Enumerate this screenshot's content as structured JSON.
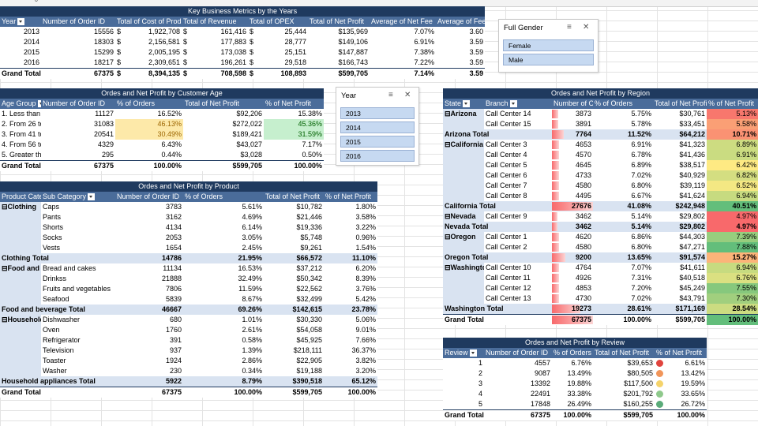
{
  "top_strip_marker": "0",
  "key_metrics": {
    "title": "Key Business Metrics by the Years",
    "headers": [
      "Year",
      "Number of Order ID",
      "Total of Cost of Products",
      "Total of Revenue",
      "Total of OPEX",
      "Total of Net Profit",
      "Average of Net Fee",
      "Average of Fee"
    ],
    "rows": [
      [
        "2013",
        "15556",
        "$",
        "1,922,708",
        "$",
        "161,416",
        "$",
        "25,444",
        "$135,969",
        "7.07%",
        "3.60"
      ],
      [
        "2014",
        "18303",
        "$",
        "2,156,581",
        "$",
        "177,883",
        "$",
        "28,777",
        "$149,106",
        "6.91%",
        "3.59"
      ],
      [
        "2015",
        "15299",
        "$",
        "2,005,195",
        "$",
        "173,038",
        "$",
        "25,151",
        "$147,887",
        "7.38%",
        "3.59"
      ],
      [
        "2016",
        "18217",
        "$",
        "2,309,651",
        "$",
        "196,261",
        "$",
        "29,518",
        "$166,743",
        "7.22%",
        "3.59"
      ]
    ],
    "total": [
      "Grand Total",
      "67375",
      "$",
      "8,394,135",
      "$",
      "708,598",
      "$",
      "108,893",
      "$599,705",
      "7.14%",
      "3.59"
    ]
  },
  "age": {
    "title": "Ordes and Net Profit by Customer Age",
    "headers": [
      "Age Group",
      "Number of Order ID",
      "% of Orders",
      "Total of Net Profit",
      "% of Net Profit"
    ],
    "rows": [
      [
        "1. Less than 26",
        "11127",
        "16.52%",
        "$92,206",
        "15.38%"
      ],
      [
        "2. From 26 to 40",
        "31083",
        "46.13%",
        "$272,022",
        "45.36%"
      ],
      [
        "3. From 41 to 55",
        "20541",
        "30.49%",
        "$189,421",
        "31.59%"
      ],
      [
        "4. From 56 to 70",
        "4329",
        "6.43%",
        "$43,027",
        "7.17%"
      ],
      [
        "5. Greater than 70",
        "295",
        "0.44%",
        "$3,028",
        "0.50%"
      ]
    ],
    "total": [
      "Grand Total",
      "67375",
      "100.00%",
      "$599,705",
      "100.00%"
    ]
  },
  "product": {
    "title": "Ordes and Net Profit by Product",
    "headers": [
      "Product Category",
      "Sub Category",
      "Number of Order ID",
      "% of Orders",
      "Total of Net Profit",
      "% of Net Profit"
    ],
    "groups": [
      {
        "name": "Clothing",
        "rows": [
          [
            "Caps",
            "3783",
            "5.61%",
            "$10,782",
            "1.80%"
          ],
          [
            "Pants",
            "3162",
            "4.69%",
            "$21,446",
            "3.58%"
          ],
          [
            "Shorts",
            "4134",
            "6.14%",
            "$19,336",
            "3.22%"
          ],
          [
            "Socks",
            "2053",
            "3.05%",
            "$5,748",
            "0.96%"
          ],
          [
            "Vests",
            "1654",
            "2.45%",
            "$9,261",
            "1.54%"
          ]
        ],
        "total": [
          "Clothing Total",
          "14786",
          "21.95%",
          "$66,572",
          "11.10%"
        ]
      },
      {
        "name": "Food and beverage",
        "rows": [
          [
            "Bread and cakes",
            "11134",
            "16.53%",
            "$37,212",
            "6.20%"
          ],
          [
            "Drinkss",
            "21888",
            "32.49%",
            "$50,342",
            "8.39%"
          ],
          [
            "Fruits and vegetables",
            "7806",
            "11.59%",
            "$22,562",
            "3.76%"
          ],
          [
            "Seafood",
            "5839",
            "8.67%",
            "$32,499",
            "5.42%"
          ]
        ],
        "total": [
          "Food and beverage Total",
          "46667",
          "69.26%",
          "$142,615",
          "23.78%"
        ]
      },
      {
        "name": "Household appliances",
        "rows": [
          [
            "Dishwasher",
            "680",
            "1.01%",
            "$30,330",
            "5.06%"
          ],
          [
            "Oven",
            "1760",
            "2.61%",
            "$54,058",
            "9.01%"
          ],
          [
            "Refrigerator",
            "391",
            "0.58%",
            "$45,925",
            "7.66%"
          ],
          [
            "Television",
            "937",
            "1.39%",
            "$218,111",
            "36.37%"
          ],
          [
            "Toaster",
            "1924",
            "2.86%",
            "$22,905",
            "3.82%"
          ],
          [
            "Washer",
            "230",
            "0.34%",
            "$19,188",
            "3.20%"
          ]
        ],
        "total": [
          "Household appliances Total",
          "5922",
          "8.79%",
          "$390,518",
          "65.12%"
        ]
      }
    ],
    "total": [
      "Grand Total",
      "67375",
      "100.00%",
      "$599,705",
      "100.00%"
    ]
  },
  "gender_slicer": {
    "title": "Full Gender",
    "items": [
      "Female",
      "Male"
    ]
  },
  "year_slicer": {
    "title": "Year",
    "items": [
      "2013",
      "2014",
      "2015",
      "2016"
    ]
  },
  "region": {
    "title": "Ordes and Net Profit by Region",
    "headers": [
      "State",
      "Branch",
      "Number of Order ID",
      "% of Orders",
      "Total of Net Profit",
      "% of Net Profit"
    ],
    "groups": [
      {
        "name": "Arizona",
        "rows": [
          [
            "Call Center 14",
            "3873",
            "5.75%",
            "$30,761",
            "5.13%"
          ],
          [
            "Call Center 15",
            "3891",
            "5.78%",
            "$33,451",
            "5.58%"
          ]
        ],
        "total": [
          "Arizona Total",
          "7764",
          "11.52%",
          "$64,212",
          "10.71%"
        ]
      },
      {
        "name": "California",
        "rows": [
          [
            "Call Center 3",
            "4653",
            "6.91%",
            "$41,323",
            "6.89%"
          ],
          [
            "Call Center 4",
            "4570",
            "6.78%",
            "$41,436",
            "6.91%"
          ],
          [
            "Call Center 5",
            "4645",
            "6.89%",
            "$38,517",
            "6.42%"
          ],
          [
            "Call Center 6",
            "4733",
            "7.02%",
            "$40,929",
            "6.82%"
          ],
          [
            "Call Center 7",
            "4580",
            "6.80%",
            "$39,119",
            "6.52%"
          ],
          [
            "Call Center 8",
            "4495",
            "6.67%",
            "$41,624",
            "6.94%"
          ]
        ],
        "total": [
          "California Total",
          "27676",
          "41.08%",
          "$242,948",
          "40.51%"
        ]
      },
      {
        "name": "Nevada",
        "rows": [
          [
            "Call Center 9",
            "3462",
            "5.14%",
            "$29,802",
            "4.97%"
          ]
        ],
        "total": [
          "Nevada Total",
          "3462",
          "5.14%",
          "$29,802",
          "4.97%"
        ]
      },
      {
        "name": "Oregon",
        "rows": [
          [
            "Call Center 1",
            "4620",
            "6.86%",
            "$44,303",
            "7.39%"
          ],
          [
            "Call Center 2",
            "4580",
            "6.80%",
            "$47,271",
            "7.88%"
          ]
        ],
        "total": [
          "Oregon Total",
          "9200",
          "13.65%",
          "$91,574",
          "15.27%"
        ]
      },
      {
        "name": "Washington",
        "rows": [
          [
            "Call Center 10",
            "4764",
            "7.07%",
            "$41,611",
            "6.94%"
          ],
          [
            "Call Center 11",
            "4926",
            "7.31%",
            "$40,518",
            "6.76%"
          ],
          [
            "Call Center 12",
            "4853",
            "7.20%",
            "$45,249",
            "7.55%"
          ],
          [
            "Call Center 13",
            "4730",
            "7.02%",
            "$43,791",
            "7.30%"
          ]
        ],
        "total": [
          "Washington Total",
          "19273",
          "28.61%",
          "$171,169",
          "28.54%"
        ]
      }
    ],
    "total": [
      "Grand Total",
      "67375",
      "100.00%",
      "$599,705",
      "100.00%"
    ]
  },
  "review": {
    "title": "Ordes and Net Profit by Review",
    "headers": [
      "Review",
      "Number of Order ID",
      "% of Orders",
      "Total of Net Profit",
      "% of Net Profit"
    ],
    "rows": [
      [
        "1",
        "4557",
        "6.76%",
        "$39,653",
        "6.61%"
      ],
      [
        "2",
        "9087",
        "13.49%",
        "$80,505",
        "13.42%"
      ],
      [
        "3",
        "13392",
        "19.88%",
        "$117,500",
        "19.59%"
      ],
      [
        "4",
        "22491",
        "33.38%",
        "$201,792",
        "33.65%"
      ],
      [
        "5",
        "17848",
        "26.49%",
        "$160,255",
        "26.72%"
      ]
    ],
    "dot_colors": [
      "#e0443e",
      "#f1955a",
      "#f5d36b",
      "#8fc98c",
      "#5aab79"
    ],
    "total": [
      "Grand Total",
      "67375",
      "100.00%",
      "$599,705",
      "100.00%"
    ]
  }
}
